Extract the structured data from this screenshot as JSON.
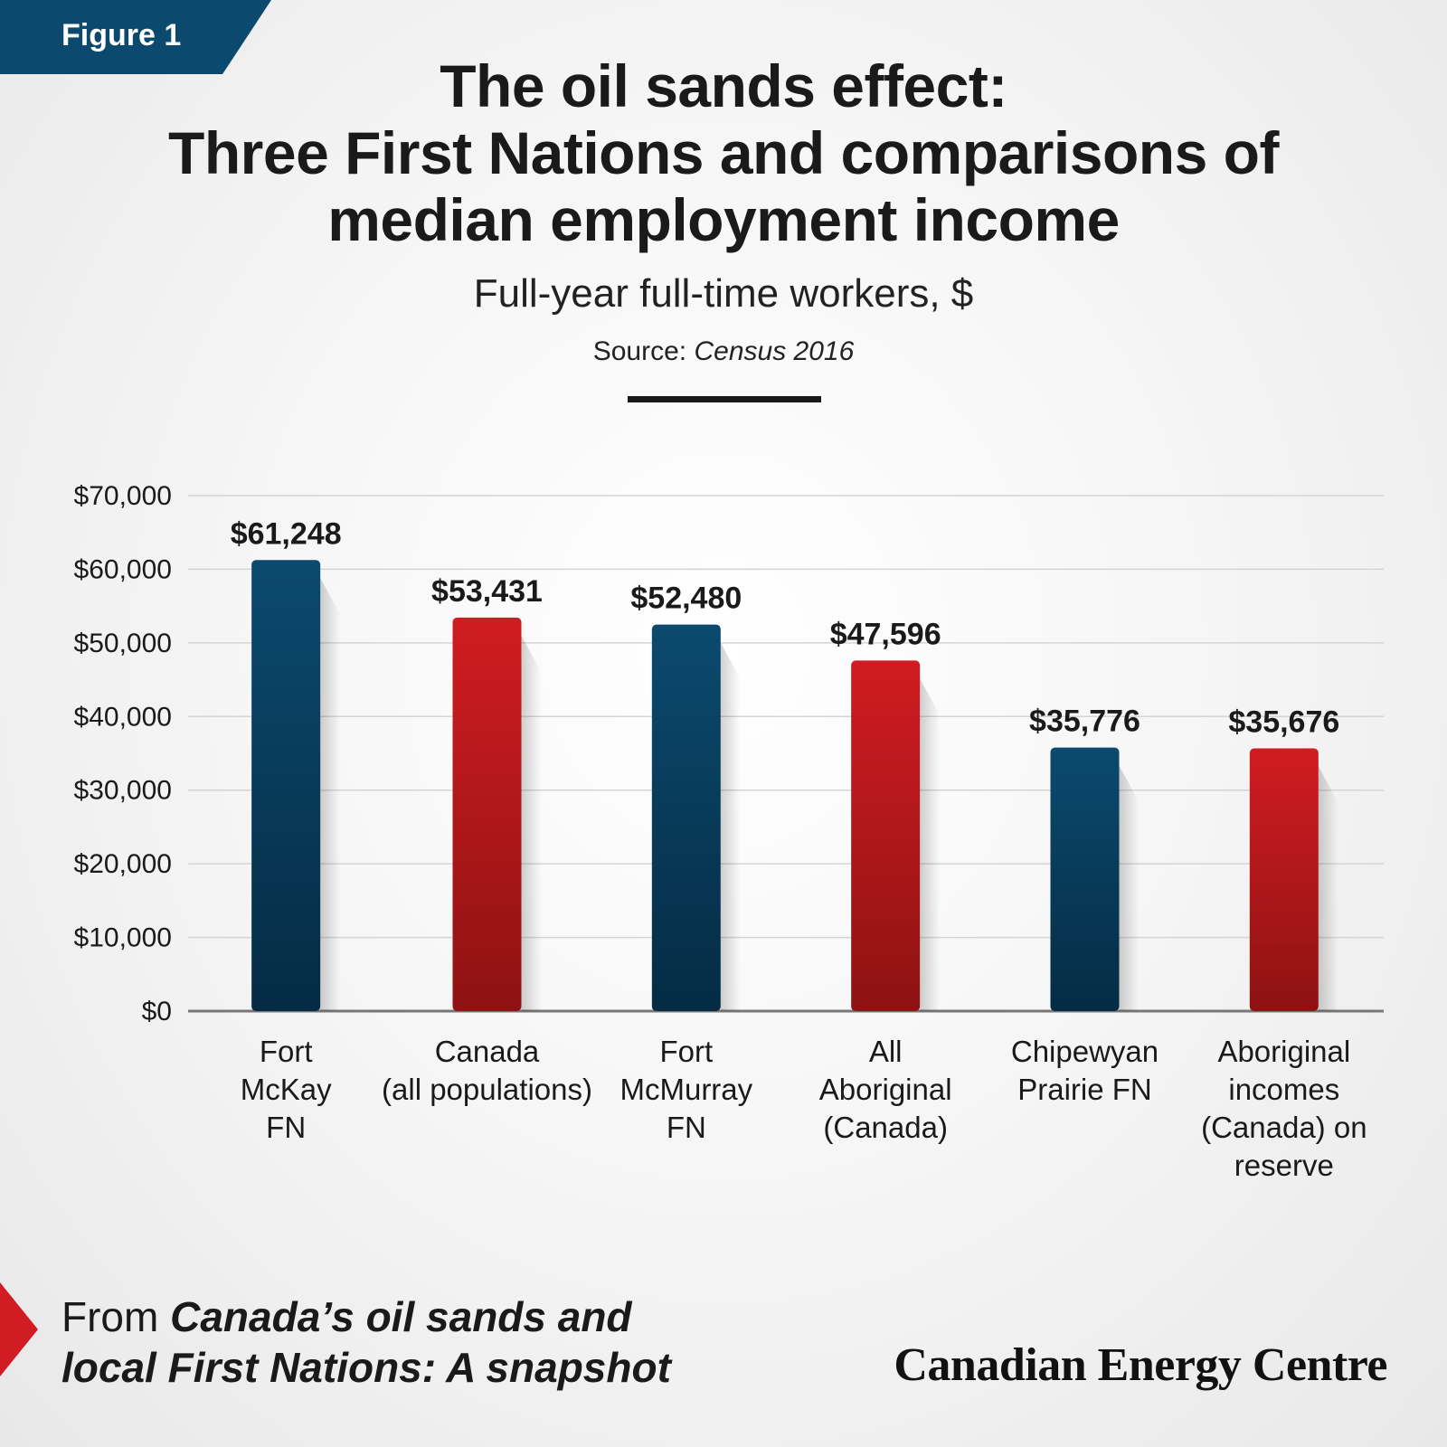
{
  "figure_tag": "Figure 1",
  "title_lines": [
    "The oil sands effect:",
    "Three First Nations and comparisons of",
    "median employment income"
  ],
  "subtitle": "Full-year full-time workers, $",
  "source": {
    "label": "Source:",
    "value": "Census 2016"
  },
  "footer": {
    "prefix": "From",
    "pub_line1": "Canada’s oil sands and",
    "pub_line2": "local First Nations: A snapshot"
  },
  "brand": "Canadian Energy Centre",
  "colors": {
    "blue": "#0b4a6e",
    "red": "#d01c22"
  },
  "chart_data": {
    "type": "bar",
    "ylim": [
      0,
      70000
    ],
    "yticks": [
      {
        "value": 0,
        "label": "$0"
      },
      {
        "value": 10000,
        "label": "$10,000"
      },
      {
        "value": 20000,
        "label": "$20,000"
      },
      {
        "value": 30000,
        "label": "$30,000"
      },
      {
        "value": 40000,
        "label": "$40,000"
      },
      {
        "value": 50000,
        "label": "$50,000"
      },
      {
        "value": 60000,
        "label": "$60,000"
      },
      {
        "value": 70000,
        "label": "$70,000"
      }
    ],
    "grid": true,
    "bars": [
      {
        "category": [
          "Fort",
          "McKay",
          "FN"
        ],
        "value": 61248,
        "label": "$61,248",
        "color": "blue"
      },
      {
        "category": [
          "Canada",
          "(all populations)"
        ],
        "value": 53431,
        "label": "$53,431",
        "color": "red"
      },
      {
        "category": [
          "Fort",
          "McMurray",
          "FN"
        ],
        "value": 52480,
        "label": "$52,480",
        "color": "blue"
      },
      {
        "category": [
          "All",
          "Aboriginal",
          "(Canada)"
        ],
        "value": 47596,
        "label": "$47,596",
        "color": "red"
      },
      {
        "category": [
          "Chipewyan",
          "Prairie FN"
        ],
        "value": 35776,
        "label": "$35,776",
        "color": "blue"
      },
      {
        "category": [
          "Aboriginal",
          "incomes",
          "(Canada) on",
          "reserve"
        ],
        "value": 35676,
        "label": "$35,676",
        "color": "red"
      }
    ]
  }
}
